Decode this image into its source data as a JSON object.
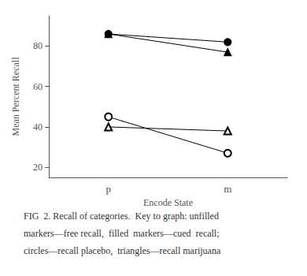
{
  "chart_data": {
    "type": "line",
    "xlabel": "Encode State",
    "ylabel": "Mean Percent Recall",
    "categories": [
      "p",
      "m"
    ],
    "series": [
      {
        "color": "black",
        "marker": "circle",
        "values": [
          86,
          82
        ]
      },
      {
        "color": "black",
        "marker": "triangle",
        "values": [
          86,
          77
        ]
      },
      {
        "color": "black",
        "marker": "open circle",
        "values": [
          45,
          27
        ]
      },
      {
        "color": "black",
        "marker": "open triangle",
        "values": [
          40,
          38
        ]
      }
    ],
    "ylim": [
      15,
      95
    ],
    "yticks": [
      20,
      40,
      60,
      80
    ],
    "grid": false,
    "annotations": [
      "FIG  2. Recall of categories.  Key to graph: unfilled",
      "markers—free recall,  filled  markers—cued  recall;",
      "circles—recall placebo,  triangles—recall marijuana"
    ]
  }
}
